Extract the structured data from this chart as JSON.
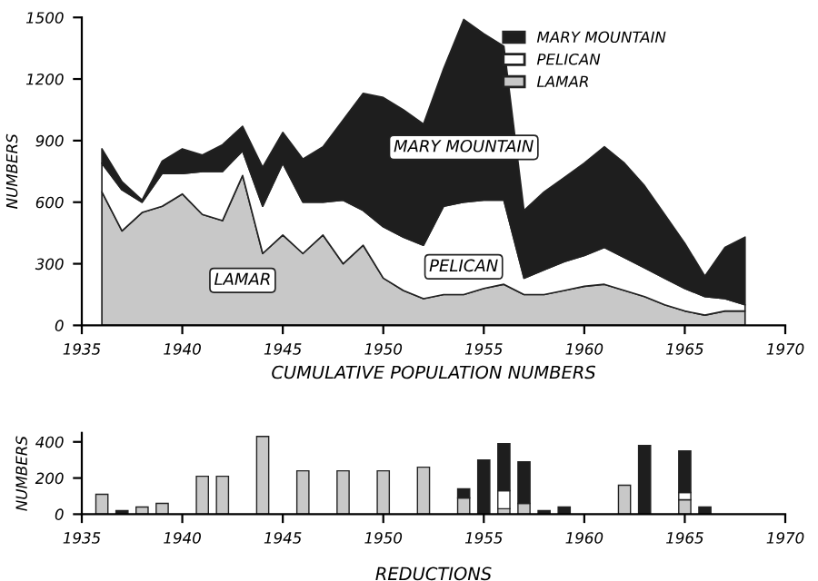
{
  "chart_data": [
    {
      "type": "area",
      "stacked": true,
      "xlabel": "CUMULATIVE POPULATION NUMBERS",
      "ylabel": "NUMBERS",
      "x": [
        1936,
        1937,
        1938,
        1939,
        1940,
        1941,
        1942,
        1943,
        1944,
        1945,
        1946,
        1947,
        1948,
        1949,
        1950,
        1951,
        1952,
        1953,
        1954,
        1955,
        1956,
        1957,
        1958,
        1959,
        1960,
        1961,
        1962,
        1963,
        1964,
        1965,
        1966,
        1967,
        1968
      ],
      "series": [
        {
          "name": "LAMAR",
          "color": "#c8c8c8",
          "values": [
            650,
            460,
            550,
            580,
            640,
            540,
            510,
            730,
            350,
            440,
            350,
            440,
            300,
            390,
            230,
            170,
            130,
            150,
            150,
            180,
            200,
            150,
            150,
            170,
            190,
            200,
            170,
            140,
            100,
            70,
            50,
            70,
            70
          ]
        },
        {
          "name": "PELICAN",
          "color": "#ffffff",
          "values": [
            140,
            200,
            50,
            160,
            100,
            210,
            240,
            120,
            230,
            350,
            250,
            160,
            310,
            170,
            250,
            260,
            260,
            430,
            450,
            430,
            410,
            80,
            120,
            140,
            150,
            180,
            160,
            140,
            130,
            110,
            90,
            60,
            30
          ]
        },
        {
          "name": "MARY MOUNTAIN",
          "color": "#1e1e1e",
          "values": [
            70,
            40,
            10,
            60,
            120,
            80,
            130,
            120,
            190,
            150,
            210,
            270,
            390,
            570,
            630,
            620,
            590,
            670,
            890,
            810,
            750,
            330,
            380,
            410,
            450,
            490,
            460,
            400,
            310,
            220,
            100,
            250,
            330
          ]
        }
      ],
      "xlim": [
        1935,
        1970
      ],
      "ylim": [
        0,
        1500
      ],
      "xticks": [
        1935,
        1940,
        1945,
        1950,
        1955,
        1960,
        1965,
        1970
      ],
      "yticks": [
        0,
        300,
        600,
        900,
        1200,
        1500
      ],
      "legend": "top right"
    },
    {
      "type": "bar",
      "stacked": true,
      "xlabel": "REDUCTIONS",
      "ylabel": "NUMBERS",
      "x": [
        1936,
        1937,
        1938,
        1939,
        1941,
        1942,
        1944,
        1946,
        1948,
        1950,
        1952,
        1954,
        1955,
        1956,
        1957,
        1958,
        1959,
        1962,
        1963,
        1965,
        1966
      ],
      "series": [
        {
          "color": "#c8c8c8",
          "values": [
            110,
            null,
            40,
            60,
            210,
            210,
            430,
            240,
            240,
            240,
            260,
            90,
            null,
            30,
            60,
            null,
            null,
            160,
            null,
            80,
            null
          ]
        },
        {
          "color": "#ffffff",
          "values": [
            null,
            null,
            null,
            null,
            null,
            null,
            null,
            null,
            null,
            null,
            null,
            null,
            null,
            100,
            null,
            null,
            null,
            null,
            null,
            40,
            null
          ]
        },
        {
          "color": "#1e1e1e",
          "values": [
            null,
            20,
            null,
            null,
            null,
            null,
            null,
            null,
            null,
            null,
            null,
            50,
            300,
            260,
            230,
            20,
            40,
            null,
            380,
            230,
            40
          ]
        }
      ],
      "xlim": [
        1935,
        1970
      ],
      "ylim": [
        0,
        450
      ],
      "xticks": [
        1935,
        1940,
        1945,
        1950,
        1955,
        1960,
        1965,
        1970
      ],
      "yticks": [
        0,
        200,
        400
      ]
    }
  ]
}
